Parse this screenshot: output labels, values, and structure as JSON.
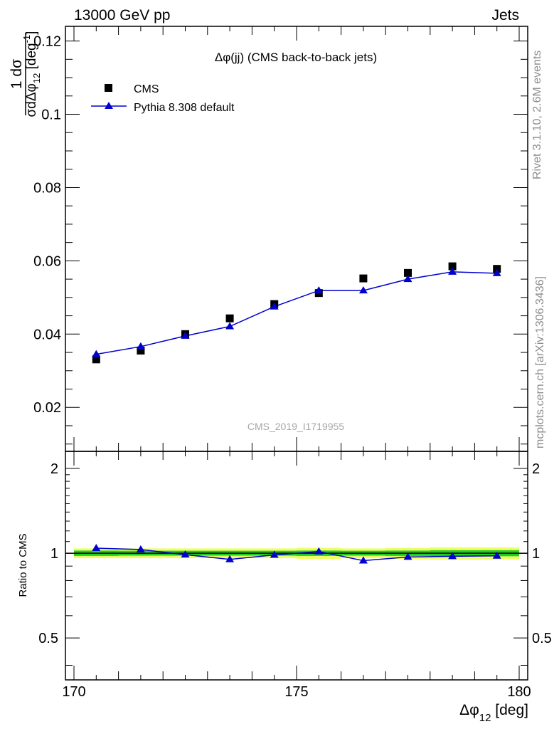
{
  "header": {
    "energy_label": "13000 GeV pp",
    "category_label": "Jets"
  },
  "side_labels": {
    "rivet": "Rivet 3.1.10,  2.6M events",
    "source": "mcplots.cern.ch [arXiv:1306.3436]"
  },
  "colors": {
    "cms": "#000000",
    "pythia": "#0000cc",
    "band_inner": "#22cc22",
    "band_outer": "#eeff66"
  },
  "chart_data": [
    {
      "type": "scatter",
      "title": "Δφ(jj) (CMS back-to-back jets)",
      "watermark": "CMS_2019_I1719955",
      "ylabel": "1/σ dσ/dΔφ12 [deg⁻¹]",
      "xlim": [
        170,
        180
      ],
      "ylim": [
        0.008,
        0.124
      ],
      "yticks": [
        0.02,
        0.04,
        0.06,
        0.08,
        0.1,
        0.12
      ],
      "ytick_labels": [
        "0.02",
        "0.04",
        "0.06",
        "0.08",
        "0.1",
        "0.12"
      ],
      "legend_position": "top-left",
      "series": [
        {
          "name": "CMS",
          "marker": "square",
          "x": [
            170.5,
            171.5,
            172.5,
            173.5,
            174.5,
            175.5,
            176.5,
            177.5,
            178.5,
            179.5
          ],
          "y": [
            0.0331,
            0.0355,
            0.04,
            0.0443,
            0.0482,
            0.0512,
            0.0552,
            0.0567,
            0.0585,
            0.0578
          ]
        },
        {
          "name": "Pythia 8.308 default",
          "marker": "triangle",
          "x": [
            170.5,
            171.5,
            172.5,
            173.5,
            174.5,
            175.5,
            176.5,
            177.5,
            178.5,
            179.5
          ],
          "y": [
            0.0345,
            0.0366,
            0.0395,
            0.0421,
            0.0475,
            0.0519,
            0.0519,
            0.055,
            0.057,
            0.0566
          ],
          "yerr": [
            0.0003,
            0.0003,
            0.0003,
            0.0004,
            0.0004,
            0.0008,
            0.0004,
            0.0004,
            0.0004,
            0.0004
          ]
        }
      ]
    },
    {
      "type": "line",
      "ylabel": "Ratio to CMS",
      "xlabel": "Δφ12 [deg]",
      "xlim": [
        170,
        180
      ],
      "ylim": [
        0.355,
        2.3
      ],
      "ylog": true,
      "xticks": [
        170,
        175,
        180
      ],
      "xtick_labels": [
        "170",
        "175",
        "180"
      ],
      "yticks": [
        0.5,
        1,
        2
      ],
      "ytick_labels": [
        "0.5",
        "1",
        "2"
      ],
      "reference": 1,
      "band_inner_halfwidth": [
        0.022,
        0.02,
        0.02,
        0.02,
        0.02,
        0.022,
        0.02,
        0.022,
        0.025,
        0.025
      ],
      "band_outer_halfwidth": [
        0.04,
        0.04,
        0.04,
        0.04,
        0.04,
        0.045,
        0.04,
        0.045,
        0.05,
        0.05
      ],
      "series": [
        {
          "name": "Pythia 8.308 default",
          "x": [
            170.5,
            171.5,
            172.5,
            173.5,
            174.5,
            175.5,
            176.5,
            177.5,
            178.5,
            179.5
          ],
          "y": [
            1.042,
            1.031,
            0.988,
            0.951,
            0.986,
            1.014,
            0.941,
            0.97,
            0.975,
            0.979
          ]
        }
      ]
    }
  ]
}
